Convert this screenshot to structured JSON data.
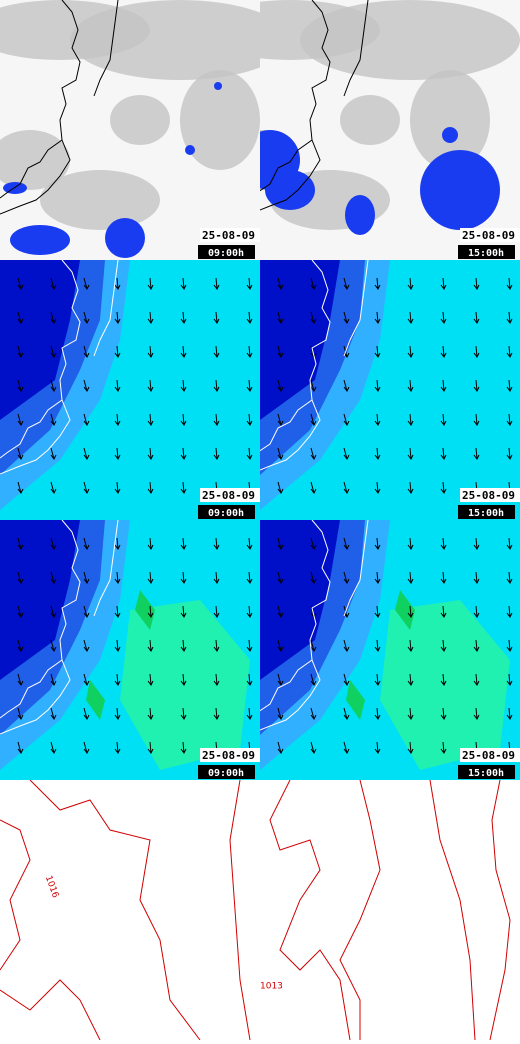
{
  "panels": [
    {
      "date": "25-08-09",
      "time": "09:00h"
    },
    {
      "date": "25-08-09",
      "time": "15:00h"
    },
    {
      "date": "25-08-09",
      "time": "09:00h"
    },
    {
      "date": "25-08-09",
      "time": "15:00h"
    },
    {
      "date": "25-08-09",
      "time": "09:00h"
    },
    {
      "date": "25-08-09",
      "time": "15:00h"
    }
  ],
  "pressure_map": {
    "labels": [
      "1016",
      "1013"
    ]
  }
}
